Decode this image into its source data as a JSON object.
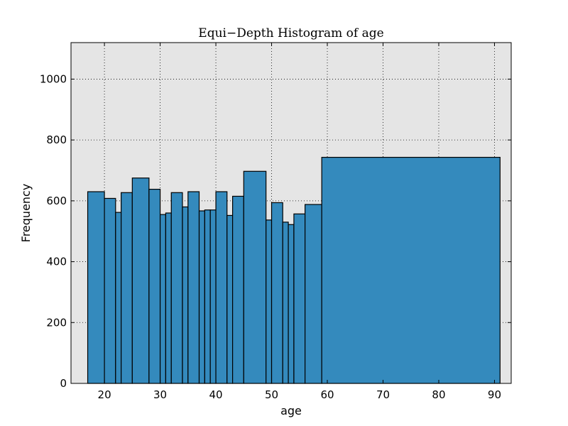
{
  "chart_data": {
    "type": "bar",
    "title": "Equi−Depth Histogram of age",
    "xlabel": "age",
    "ylabel": "Frequency",
    "xlim": [
      14,
      93
    ],
    "ylim": [
      0,
      1120
    ],
    "xticks": [
      20,
      30,
      40,
      50,
      60,
      70,
      80,
      90
    ],
    "yticks": [
      0,
      200,
      400,
      600,
      800,
      1000
    ],
    "grid": true,
    "bar_color": "#348abd",
    "bins": [
      {
        "x0": 17,
        "x1": 20,
        "y": 630
      },
      {
        "x0": 20,
        "x1": 22,
        "y": 608
      },
      {
        "x0": 22,
        "x1": 23,
        "y": 562
      },
      {
        "x0": 23,
        "x1": 25,
        "y": 627
      },
      {
        "x0": 25,
        "x1": 28,
        "y": 675
      },
      {
        "x0": 28,
        "x1": 30,
        "y": 638
      },
      {
        "x0": 30,
        "x1": 31,
        "y": 555
      },
      {
        "x0": 31,
        "x1": 32,
        "y": 560
      },
      {
        "x0": 32,
        "x1": 34,
        "y": 627
      },
      {
        "x0": 34,
        "x1": 35,
        "y": 580
      },
      {
        "x0": 35,
        "x1": 37,
        "y": 630
      },
      {
        "x0": 37,
        "x1": 38,
        "y": 567
      },
      {
        "x0": 38,
        "x1": 39,
        "y": 570
      },
      {
        "x0": 39,
        "x1": 40,
        "y": 570
      },
      {
        "x0": 40,
        "x1": 42,
        "y": 630
      },
      {
        "x0": 42,
        "x1": 43,
        "y": 552
      },
      {
        "x0": 43,
        "x1": 45,
        "y": 615
      },
      {
        "x0": 45,
        "x1": 49,
        "y": 697
      },
      {
        "x0": 49,
        "x1": 50,
        "y": 537
      },
      {
        "x0": 50,
        "x1": 52,
        "y": 594
      },
      {
        "x0": 52,
        "x1": 53,
        "y": 530
      },
      {
        "x0": 53,
        "x1": 54,
        "y": 522
      },
      {
        "x0": 54,
        "x1": 56,
        "y": 557
      },
      {
        "x0": 56,
        "x1": 59,
        "y": 588
      },
      {
        "x0": 59,
        "x1": 91,
        "y": 743
      }
    ]
  }
}
